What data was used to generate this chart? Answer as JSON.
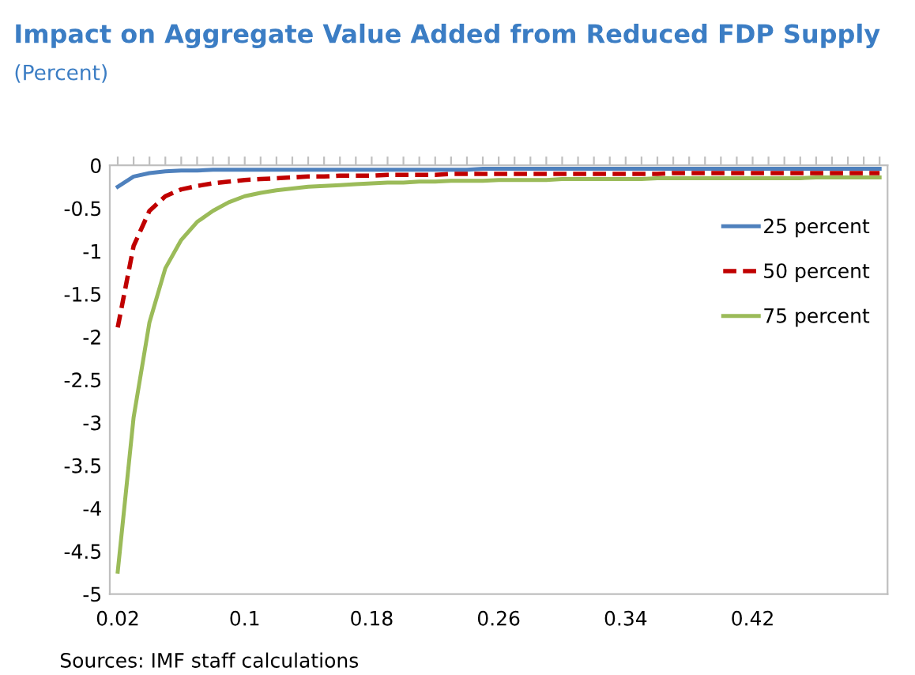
{
  "chart_data": {
    "type": "line",
    "title": "Impact on Aggregate Value Added from Reduced FDP Supply",
    "subtitle": "(Percent)",
    "annotations": [
      "Sources: IMF staff calculations"
    ],
    "categories": [
      "0.02",
      null,
      null,
      null,
      null,
      null,
      null,
      null,
      "0.1",
      null,
      null,
      null,
      null,
      null,
      null,
      null,
      "0.18",
      null,
      null,
      null,
      null,
      null,
      null,
      null,
      "0.26",
      null,
      null,
      null,
      null,
      null,
      null,
      null,
      "0.34",
      null,
      null,
      null,
      null,
      null,
      null,
      null,
      "0.42",
      null,
      null,
      null,
      null,
      null,
      null,
      null,
      null
    ],
    "series": [
      {
        "name": "25 percent",
        "color": "#4f81bd",
        "line_style": "solid",
        "values": [
          -0.25,
          -0.13,
          -0.09,
          -0.07,
          -0.06,
          -0.06,
          -0.05,
          -0.05,
          -0.05,
          -0.05,
          -0.05,
          -0.05,
          -0.05,
          -0.05,
          -0.05,
          -0.05,
          -0.05,
          -0.05,
          -0.05,
          -0.05,
          -0.05,
          -0.05,
          -0.05,
          -0.04,
          -0.04,
          -0.04,
          -0.04,
          -0.04,
          -0.04,
          -0.04,
          -0.04,
          -0.04,
          -0.04,
          -0.04,
          -0.04,
          -0.04,
          -0.04,
          -0.04,
          -0.04,
          -0.04,
          -0.04,
          -0.04,
          -0.04,
          -0.04,
          -0.04,
          -0.04,
          -0.04,
          -0.04,
          -0.04
        ]
      },
      {
        "name": "50 percent",
        "color": "#c00000",
        "line_style": "dashed",
        "values": [
          -1.89,
          -0.94,
          -0.53,
          -0.36,
          -0.28,
          -0.24,
          -0.21,
          -0.19,
          -0.17,
          -0.16,
          -0.15,
          -0.14,
          -0.13,
          -0.13,
          -0.12,
          -0.12,
          -0.12,
          -0.11,
          -0.11,
          -0.11,
          -0.11,
          -0.1,
          -0.1,
          -0.1,
          -0.1,
          -0.1,
          -0.1,
          -0.1,
          -0.1,
          -0.1,
          -0.1,
          -0.1,
          -0.1,
          -0.1,
          -0.1,
          -0.09,
          -0.09,
          -0.09,
          -0.09,
          -0.09,
          -0.09,
          -0.09,
          -0.09,
          -0.09,
          -0.09,
          -0.09,
          -0.09,
          -0.09,
          -0.09
        ]
      },
      {
        "name": "75 percent",
        "color": "#9bbb59",
        "line_style": "solid",
        "values": [
          -4.74,
          -2.94,
          -1.83,
          -1.2,
          -0.87,
          -0.66,
          -0.53,
          -0.43,
          -0.36,
          -0.32,
          -0.29,
          -0.27,
          -0.25,
          -0.24,
          -0.23,
          -0.22,
          -0.21,
          -0.2,
          -0.2,
          -0.19,
          -0.19,
          -0.18,
          -0.18,
          -0.18,
          -0.17,
          -0.17,
          -0.17,
          -0.17,
          -0.16,
          -0.16,
          -0.16,
          -0.16,
          -0.16,
          -0.16,
          -0.15,
          -0.15,
          -0.15,
          -0.15,
          -0.15,
          -0.15,
          -0.15,
          -0.15,
          -0.15,
          -0.15,
          -0.14,
          -0.14,
          -0.14,
          -0.14,
          -0.14
        ]
      }
    ],
    "ylim": [
      -5,
      0
    ],
    "yticks": [
      -5,
      -4.5,
      -4,
      -3.5,
      -3,
      -2.5,
      -2,
      -1.5,
      -1,
      -0.5,
      0
    ],
    "grid": false,
    "legend": "right",
    "marker": "none"
  }
}
